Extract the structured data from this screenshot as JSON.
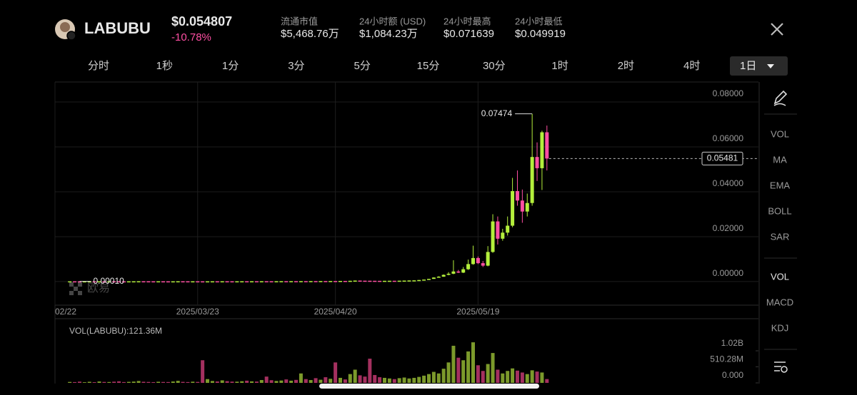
{
  "header": {
    "symbol": "LABUBU",
    "price": "$0.054807",
    "change": "-10.78%",
    "stats": [
      {
        "label": "流通市值",
        "value": "$5,468.76万"
      },
      {
        "label": "24小时额 (USD)",
        "value": "$1,084.23万"
      },
      {
        "label": "24小时最高",
        "value": "$0.071639"
      },
      {
        "label": "24小时最低",
        "value": "$0.049919"
      }
    ]
  },
  "timeframes": [
    "分时",
    "1秒",
    "1分",
    "3分",
    "5分",
    "15分",
    "30分",
    "1时",
    "2时",
    "4时",
    "1日"
  ],
  "active_timeframe": "1日",
  "indicators": {
    "main": [
      "VOL",
      "MA",
      "EMA",
      "BOLL",
      "SAR"
    ],
    "sub": [
      "VOL",
      "MACD",
      "KDJ"
    ]
  },
  "watermark": "欧易",
  "chart_data": [
    {
      "type": "candlestick",
      "x": [
        "2025-02-25",
        "2025-02-26",
        "2025-02-27",
        "2025-02-28",
        "2025-03-01",
        "2025-03-02",
        "2025-03-03",
        "2025-03-04",
        "2025-03-05",
        "2025-03-06",
        "2025-03-07",
        "2025-03-08",
        "2025-03-09",
        "2025-03-10",
        "2025-03-11",
        "2025-03-12",
        "2025-03-13",
        "2025-03-14",
        "2025-03-15",
        "2025-03-16",
        "2025-03-17",
        "2025-03-18",
        "2025-03-19",
        "2025-03-20",
        "2025-03-21",
        "2025-03-22",
        "2025-03-23",
        "2025-03-24",
        "2025-03-25",
        "2025-03-26",
        "2025-03-27",
        "2025-03-28",
        "2025-03-29",
        "2025-03-30",
        "2025-03-31",
        "2025-04-01",
        "2025-04-02",
        "2025-04-03",
        "2025-04-04",
        "2025-04-05",
        "2025-04-06",
        "2025-04-07",
        "2025-04-08",
        "2025-04-09",
        "2025-04-10",
        "2025-04-11",
        "2025-04-12",
        "2025-04-13",
        "2025-04-14",
        "2025-04-15",
        "2025-04-16",
        "2025-04-17",
        "2025-04-18",
        "2025-04-19",
        "2025-04-20",
        "2025-04-21",
        "2025-04-22",
        "2025-04-23",
        "2025-04-24",
        "2025-04-25",
        "2025-04-26",
        "2025-04-27",
        "2025-04-28",
        "2025-04-29",
        "2025-04-30",
        "2025-05-01",
        "2025-05-02",
        "2025-05-03",
        "2025-05-04",
        "2025-05-05",
        "2025-05-06",
        "2025-05-07",
        "2025-05-08",
        "2025-05-09",
        "2025-05-10",
        "2025-05-11",
        "2025-05-12",
        "2025-05-13",
        "2025-05-14",
        "2025-05-15",
        "2025-05-16",
        "2025-05-17",
        "2025-05-18",
        "2025-05-19",
        "2025-05-20",
        "2025-05-21",
        "2025-05-22",
        "2025-05-23",
        "2025-05-24",
        "2025-05-25",
        "2025-05-26",
        "2025-05-27",
        "2025-05-28",
        "2025-05-29",
        "2025-05-30",
        "2025-05-31",
        "2025-06-01",
        "2025-06-02"
      ],
      "ohlc": [
        [
          0.00011,
          0.00012,
          0.00011,
          0.00012
        ],
        [
          0.00012,
          0.00012,
          0.00011,
          0.00011
        ],
        [
          0.00011,
          0.00011,
          0.0001,
          0.0001
        ],
        [
          0.0001,
          0.00011,
          0.0001,
          0.00011
        ],
        [
          0.00011,
          0.00012,
          0.00011,
          0.00012
        ],
        [
          0.00012,
          0.00012,
          0.00011,
          0.00011
        ],
        [
          0.00011,
          0.00013,
          0.00011,
          0.00013
        ],
        [
          0.00013,
          0.00013,
          0.00012,
          0.00012
        ],
        [
          0.00012,
          0.00014,
          0.00012,
          0.00014
        ],
        [
          0.00014,
          0.00014,
          0.00013,
          0.00013
        ],
        [
          0.00013,
          0.00013,
          0.00012,
          0.00012
        ],
        [
          0.00012,
          0.00012,
          0.00011,
          0.00011
        ],
        [
          0.00011,
          0.00012,
          0.00011,
          0.00012
        ],
        [
          0.00012,
          0.00013,
          0.00012,
          0.00013
        ],
        [
          0.00013,
          0.00015,
          0.00013,
          0.00015
        ],
        [
          0.00015,
          0.00015,
          0.00014,
          0.00014
        ],
        [
          0.00014,
          0.00014,
          0.00013,
          0.00013
        ],
        [
          0.00013,
          0.00013,
          0.00012,
          0.00012
        ],
        [
          0.00012,
          0.00013,
          0.00012,
          0.00013
        ],
        [
          0.00013,
          0.00013,
          0.00012,
          0.00012
        ],
        [
          0.00012,
          0.00012,
          0.00011,
          0.00011
        ],
        [
          0.00011,
          0.00012,
          0.00011,
          0.00012
        ],
        [
          0.00012,
          0.00014,
          0.00012,
          0.00014
        ],
        [
          0.00014,
          0.00014,
          0.00013,
          0.00013
        ],
        [
          0.00013,
          0.00013,
          0.00012,
          0.00012
        ],
        [
          0.00012,
          0.00013,
          0.00012,
          0.00013
        ],
        [
          0.00013,
          0.00013,
          0.00012,
          0.00012
        ],
        [
          0.00012,
          0.00012,
          0.00011,
          0.00011
        ],
        [
          0.00011,
          0.00012,
          0.00011,
          0.00012
        ],
        [
          0.00012,
          0.00013,
          0.00012,
          0.00013
        ],
        [
          0.00013,
          0.00013,
          0.00012,
          0.00012
        ],
        [
          0.00012,
          0.00014,
          0.00012,
          0.00014
        ],
        [
          0.00014,
          0.00014,
          0.00013,
          0.00013
        ],
        [
          0.00013,
          0.00013,
          0.00012,
          0.00012
        ],
        [
          0.00012,
          0.00013,
          0.00012,
          0.00013
        ],
        [
          0.00013,
          0.00014,
          0.00013,
          0.00014
        ],
        [
          0.00014,
          0.00014,
          0.00013,
          0.00013
        ],
        [
          0.00013,
          0.00015,
          0.00013,
          0.00015
        ],
        [
          0.00015,
          0.00015,
          0.00014,
          0.00014
        ],
        [
          0.00014,
          0.00016,
          0.00014,
          0.00016
        ],
        [
          0.00016,
          0.00016,
          0.00015,
          0.00015
        ],
        [
          0.00015,
          0.00015,
          0.00014,
          0.00014
        ],
        [
          0.00014,
          0.00016,
          0.00014,
          0.00016
        ],
        [
          0.00016,
          0.00018,
          0.00016,
          0.00018
        ],
        [
          0.00018,
          0.00018,
          0.00017,
          0.00017
        ],
        [
          0.00017,
          0.00019,
          0.00017,
          0.00019
        ],
        [
          0.00019,
          0.00019,
          0.00018,
          0.00018
        ],
        [
          0.00018,
          0.0002,
          0.00018,
          0.0002
        ],
        [
          0.0002,
          0.0002,
          0.00019,
          0.00019
        ],
        [
          0.00019,
          0.00022,
          0.00019,
          0.00022
        ],
        [
          0.00022,
          0.00022,
          0.0002,
          0.0002
        ],
        [
          0.0002,
          0.00024,
          0.0002,
          0.00024
        ],
        [
          0.00024,
          0.00024,
          0.00022,
          0.00022
        ],
        [
          0.00022,
          0.00026,
          0.00022,
          0.00026
        ],
        [
          0.00026,
          0.00026,
          0.00025,
          0.00025
        ],
        [
          0.00025,
          0.0003,
          0.00025,
          0.0003
        ],
        [
          0.0003,
          0.0003,
          0.00028,
          0.00028
        ],
        [
          0.00028,
          0.00035,
          0.00028,
          0.00035
        ],
        [
          0.00035,
          0.00048,
          0.00035,
          0.00045
        ],
        [
          0.00045,
          0.00045,
          0.0004,
          0.0004
        ],
        [
          0.0004,
          0.0004,
          0.00038,
          0.00038
        ],
        [
          0.00038,
          0.00038,
          0.00036,
          0.00036
        ],
        [
          0.00036,
          0.00036,
          0.00034,
          0.00034
        ],
        [
          0.00034,
          0.00034,
          0.00033,
          0.00033
        ],
        [
          0.00033,
          0.00035,
          0.00033,
          0.00035
        ],
        [
          0.00035,
          0.00037,
          0.00035,
          0.00037
        ],
        [
          0.00037,
          0.00037,
          0.00036,
          0.00036
        ],
        [
          0.00036,
          0.0004,
          0.00036,
          0.0004
        ],
        [
          0.0004,
          0.00045,
          0.0004,
          0.00045
        ],
        [
          0.00045,
          0.0005,
          0.00045,
          0.0005
        ],
        [
          0.0005,
          0.00055,
          0.0005,
          0.00055
        ],
        [
          0.00055,
          0.0007,
          0.00055,
          0.0007
        ],
        [
          0.0007,
          0.0009,
          0.0007,
          0.0009
        ],
        [
          0.0009,
          0.0012,
          0.0009,
          0.0012
        ],
        [
          0.0012,
          0.0019,
          0.0012,
          0.0018
        ],
        [
          0.0018,
          0.0024,
          0.0017,
          0.0022
        ],
        [
          0.0022,
          0.0032,
          0.0021,
          0.003
        ],
        [
          0.003,
          0.0042,
          0.0028,
          0.0035
        ],
        [
          0.0035,
          0.0095,
          0.0033,
          0.0045
        ],
        [
          0.0045,
          0.0052,
          0.0038,
          0.004
        ],
        [
          0.004,
          0.0065,
          0.0038,
          0.0055
        ],
        [
          0.0055,
          0.0098,
          0.0052,
          0.0078
        ],
        [
          0.0078,
          0.016,
          0.0075,
          0.0105
        ],
        [
          0.0105,
          0.0112,
          0.0078,
          0.0082
        ],
        [
          0.0082,
          0.0092,
          0.0065,
          0.0071
        ],
        [
          0.0071,
          0.0158,
          0.0068,
          0.0132
        ],
        [
          0.0132,
          0.03,
          0.0128,
          0.0268
        ],
        [
          0.0268,
          0.029,
          0.0165,
          0.0191
        ],
        [
          0.0191,
          0.0235,
          0.0182,
          0.0218
        ],
        [
          0.0218,
          0.029,
          0.0205,
          0.0249
        ],
        [
          0.0249,
          0.0462,
          0.0242,
          0.0403
        ],
        [
          0.0403,
          0.0495,
          0.0338,
          0.0361
        ],
        [
          0.0361,
          0.041,
          0.0262,
          0.0312
        ],
        [
          0.0312,
          0.0392,
          0.029,
          0.035
        ],
        [
          0.035,
          0.07474,
          0.0338,
          0.0555
        ],
        [
          0.0555,
          0.062,
          0.0448,
          0.0505
        ],
        [
          0.0505,
          0.0672,
          0.0408,
          0.0665
        ],
        [
          0.0665,
          0.0695,
          0.0495,
          0.05481
        ]
      ],
      "xlim": [
        "2025-02-22",
        "2025-07-15"
      ],
      "xticks": [
        {
          "value": "2025-02-22",
          "label": "02/22"
        },
        {
          "value": "2025-03-23",
          "label": "2025/03/23"
        },
        {
          "value": "2025-04-20",
          "label": "2025/04/20"
        },
        {
          "value": "2025-05-19",
          "label": "2025/05/19"
        }
      ],
      "ylim": [
        -0.0105,
        0.0889
      ],
      "yticks": [
        {
          "value": 0,
          "label": "0.00000"
        },
        {
          "value": 0.02,
          "label": "0.02000"
        },
        {
          "value": 0.04,
          "label": "0.04000"
        },
        {
          "value": 0.06,
          "label": "0.06000"
        },
        {
          "value": 0.08,
          "label": "0.08000"
        }
      ],
      "grid": true,
      "up_color": "#b4ef3c",
      "down_color": "#ff4fa3",
      "annotations": {
        "high": 0.07474,
        "low": {
          "value": 0.0001,
          "label": "0.00010"
        },
        "last": 0.05481
      }
    },
    {
      "type": "bar",
      "title": "VOL(LABUBU):121.36M",
      "values": [
        30000000,
        25000000,
        40000000,
        20000000,
        35000000,
        22000000,
        45000000,
        30000000,
        28000000,
        38000000,
        50000000,
        26000000,
        33000000,
        41000000,
        60000000,
        35000000,
        30000000,
        24000000,
        36000000,
        29000000,
        27000000,
        44000000,
        65000000,
        32000000,
        26000000,
        38000000,
        31000000,
        720000000,
        120000000,
        60000000,
        45000000,
        80000000,
        55000000,
        40000000,
        38000000,
        52000000,
        70000000,
        48000000,
        42000000,
        90000000,
        200000000,
        85000000,
        60000000,
        75000000,
        110000000,
        70000000,
        95000000,
        300000000,
        120000000,
        90000000,
        150000000,
        100000000,
        180000000,
        130000000,
        650000000,
        160000000,
        110000000,
        280000000,
        420000000,
        240000000,
        200000000,
        770000000,
        250000000,
        180000000,
        160000000,
        140000000,
        120000000,
        150000000,
        170000000,
        140000000,
        160000000,
        190000000,
        230000000,
        280000000,
        350000000,
        300000000,
        450000000,
        650000000,
        1180000000,
        800000000,
        720000000,
        1000000000,
        1290000000,
        560000000,
        380000000,
        600000000,
        950000000,
        420000000,
        300000000,
        380000000,
        460000000,
        390000000,
        330000000,
        280000000,
        400000000,
        360000000,
        330000000,
        121360000
      ],
      "ylim": [
        0,
        2040000000
      ],
      "yticks": [
        {
          "value": 0,
          "label": "0.000"
        },
        {
          "value": 510280000,
          "label": "510.28M"
        },
        {
          "value": 1020000000,
          "label": "1.02B"
        }
      ],
      "up_color": "#7c9a2b",
      "down_color": "#a4305f"
    }
  ]
}
